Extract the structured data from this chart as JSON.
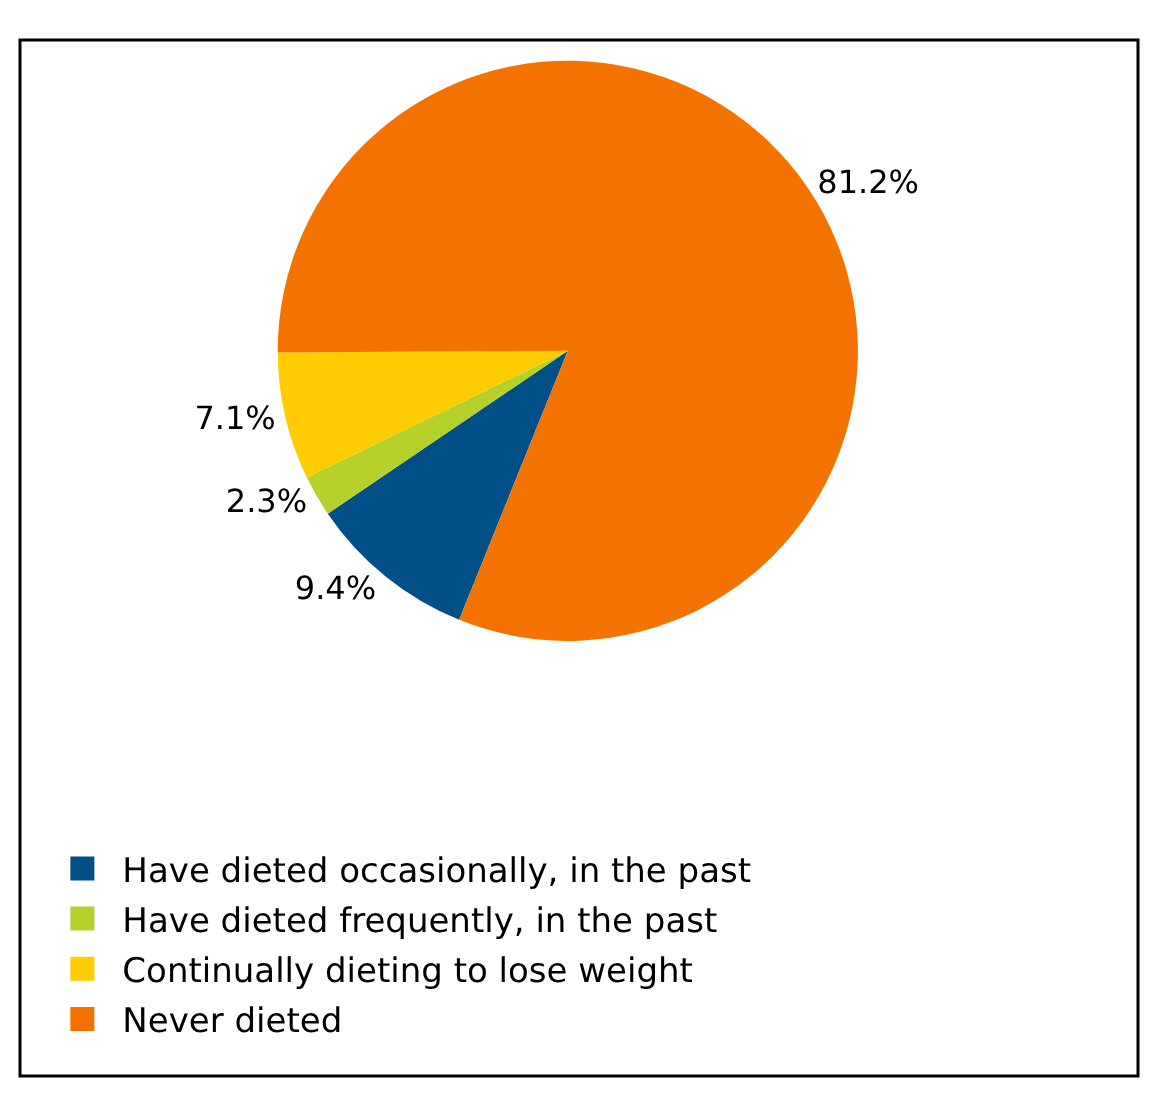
{
  "chart_data": {
    "type": "pie",
    "categories": [
      "Have dieted occasionally, in the past",
      "Have dieted frequently, in the past",
      "Continually dieting to lose weight",
      "Never dieted"
    ],
    "values": [
      9.4,
      2.3,
      7.1,
      81.2
    ],
    "colors": [
      "#004f86",
      "#b5d12a",
      "#fecc00",
      "#f47200"
    ],
    "value_labels": [
      "9.4%",
      "2.3%",
      "7.1%",
      "81.2%"
    ],
    "legend": "bottom left"
  }
}
